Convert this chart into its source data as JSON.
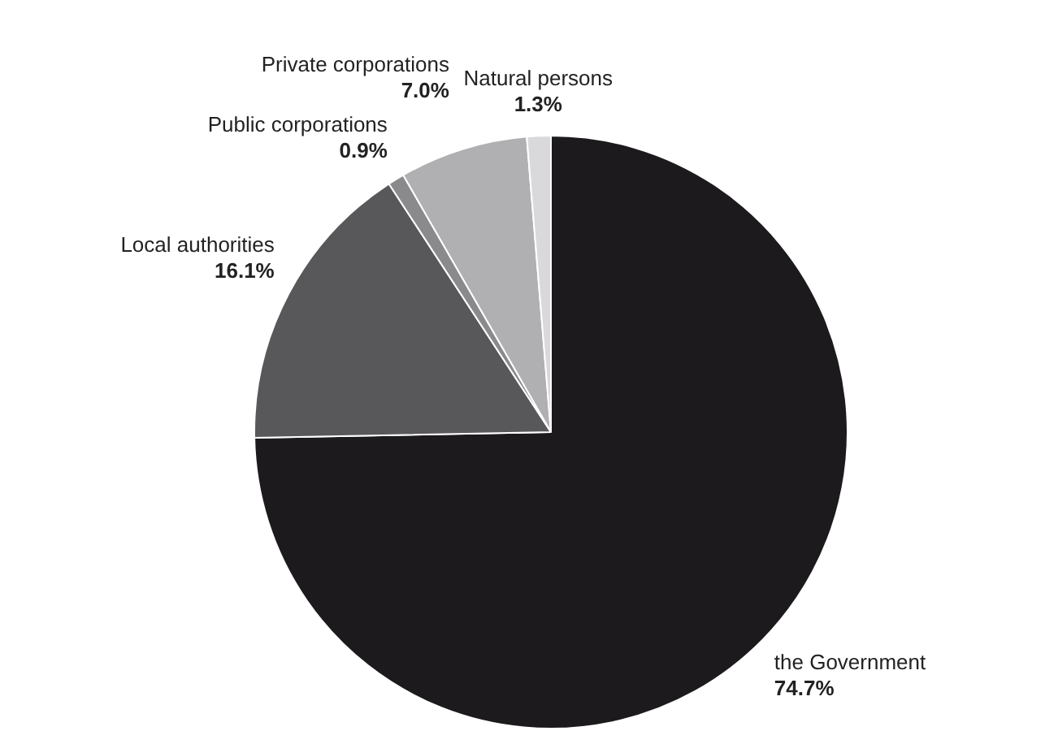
{
  "chart_data": {
    "type": "pie",
    "categories": [
      "the Government",
      "Local authorities",
      "Public corporations",
      "Private corporations",
      "Natural persons"
    ],
    "values": [
      74.7,
      16.1,
      0.9,
      7.0,
      1.3
    ],
    "value_labels": [
      "74.7%",
      "16.1%",
      "0.9%",
      "7.0%",
      "1.3%"
    ],
    "colors": [
      "#1c1a1d",
      "#58585a",
      "#8a8a8c",
      "#b0b0b2",
      "#d9d9db"
    ],
    "legend": false
  }
}
